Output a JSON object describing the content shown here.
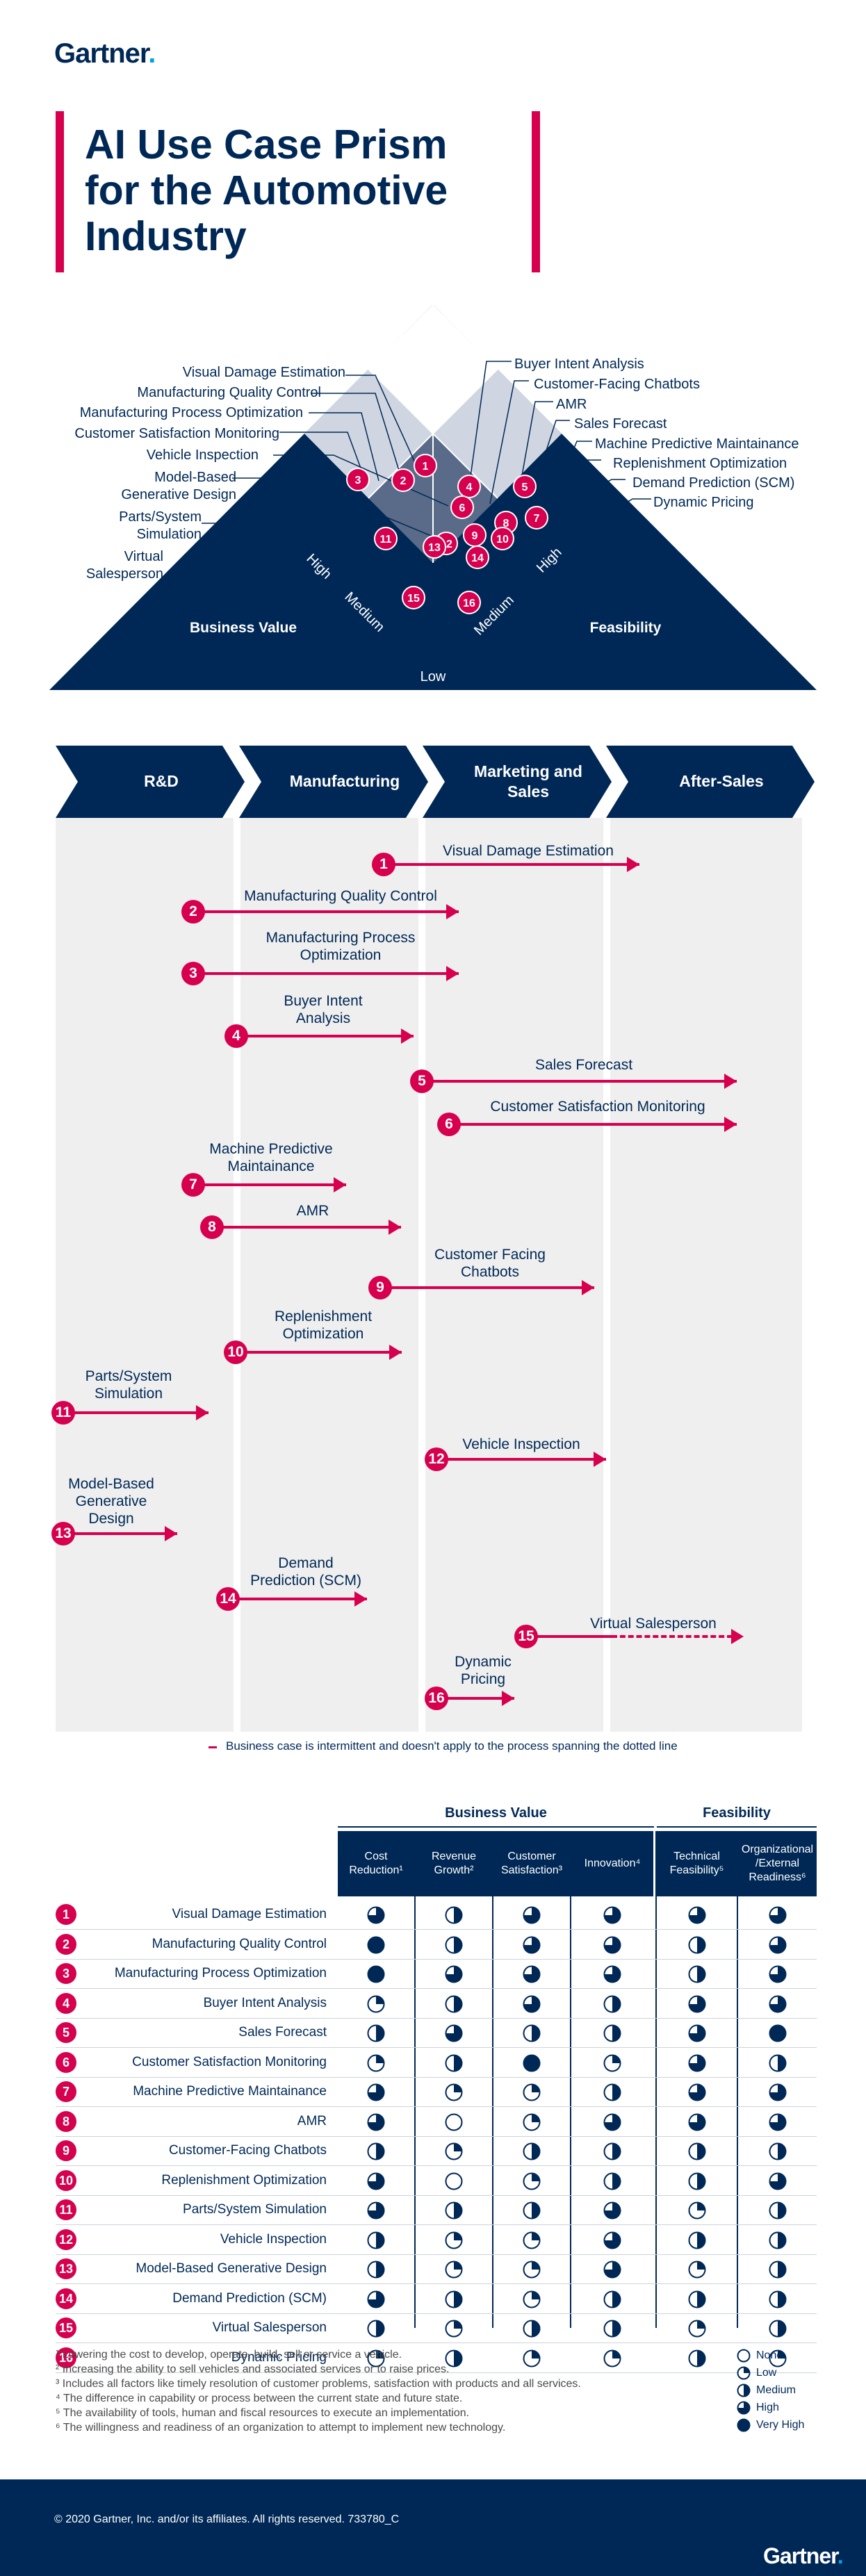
{
  "brand": {
    "logo": "Gartner",
    "accent": "#d6004f",
    "navy": "#002856"
  },
  "title": [
    "AI Use Case Prism",
    "for the Automotive",
    "Industry"
  ],
  "prism": {
    "left_axis": "Business Value",
    "right_axis": "Feasibility",
    "levels": {
      "high": "High",
      "medium": "Medium",
      "low": "Low"
    },
    "left_labels": [
      "Visual Damage Estimation",
      "Manufacturing Quality Control",
      "Manufacturing Process Optimization",
      "Customer Satisfaction Monitoring",
      "Vehicle Inspection",
      "Model-Based",
      "Generative Design",
      "Parts/System",
      "Simulation",
      "Virtual",
      "Salesperson"
    ],
    "right_labels": [
      "Buyer Intent Analysis",
      "Customer-Facing Chatbots",
      "AMR",
      "Sales Forecast",
      "Machine Predictive Maintainance",
      "Replenishment Optimization",
      "Demand Prediction (SCM)",
      "Dynamic Pricing"
    ],
    "numbers": [
      "1",
      "2",
      "3",
      "4",
      "5",
      "6",
      "7",
      "8",
      "9",
      "10",
      "11",
      "12",
      "13",
      "14",
      "15",
      "16"
    ]
  },
  "phases": [
    {
      "label": "R&D"
    },
    {
      "label": "Manufacturing"
    },
    {
      "label": "Marketing and Sales"
    },
    {
      "label": "After-Sales"
    }
  ],
  "use_cases": [
    {
      "num": "1",
      "name": "Visual Damage Estimation"
    },
    {
      "num": "2",
      "name": "Manufacturing Quality Control"
    },
    {
      "num": "3",
      "name": "Manufacturing Process Optimization"
    },
    {
      "num": "4",
      "name": "Buyer Intent Analysis"
    },
    {
      "num": "5",
      "name": "Sales Forecast"
    },
    {
      "num": "6",
      "name": "Customer Satisfaction Monitoring"
    },
    {
      "num": "7",
      "name": "Machine Predictive Maintainance"
    },
    {
      "num": "8",
      "name": "AMR"
    },
    {
      "num": "9",
      "name": "Customer Facing Chatbots"
    },
    {
      "num": "10",
      "name": "Replenishment Optimization"
    },
    {
      "num": "11",
      "name": "Parts/System Simulation"
    },
    {
      "num": "12",
      "name": "Vehicle Inspection"
    },
    {
      "num": "13",
      "name": "Model-Based Generative Design"
    },
    {
      "num": "14",
      "name": "Demand Prediction (SCM)"
    },
    {
      "num": "15",
      "name": "Virtual Salesperson"
    },
    {
      "num": "16",
      "name": "Dynamic Pricing"
    }
  ],
  "dotted_note": "Business case is intermittent and doesn't apply to the process spanning the dotted line",
  "table": {
    "group_business": "Business Value",
    "group_feasibility": "Feasibility",
    "columns": [
      "Cost Reduction¹",
      "Revenue Growth²",
      "Customer Satisfaction³",
      "Innovation⁴",
      "Technical Feasibility⁵",
      "Organizational /External Readiness⁶"
    ],
    "rows": [
      {
        "num": "1",
        "name": "Visual Damage Estimation",
        "scores": [
          3,
          2,
          3,
          3,
          3,
          3
        ]
      },
      {
        "num": "2",
        "name": "Manufacturing Quality Control",
        "scores": [
          4,
          2,
          3,
          3,
          2,
          3
        ]
      },
      {
        "num": "3",
        "name": "Manufacturing Process Optimization",
        "scores": [
          4,
          3,
          3,
          3,
          2,
          3
        ]
      },
      {
        "num": "4",
        "name": "Buyer Intent Analysis",
        "scores": [
          1,
          2,
          3,
          2,
          3,
          3
        ]
      },
      {
        "num": "5",
        "name": "Sales Forecast",
        "scores": [
          2,
          3,
          2,
          2,
          3,
          4
        ]
      },
      {
        "num": "6",
        "name": "Customer Satisfaction Monitoring",
        "scores": [
          1,
          2,
          4,
          1,
          3,
          2
        ]
      },
      {
        "num": "7",
        "name": "Machine Predictive Maintainance",
        "scores": [
          3,
          1,
          1,
          2,
          3,
          3
        ]
      },
      {
        "num": "8",
        "name": "AMR",
        "scores": [
          3,
          0,
          1,
          3,
          3,
          3
        ]
      },
      {
        "num": "9",
        "name": "Customer-Facing Chatbots",
        "scores": [
          2,
          1,
          2,
          2,
          2,
          2
        ]
      },
      {
        "num": "10",
        "name": "Replenishment Optimization",
        "scores": [
          3,
          0,
          1,
          2,
          2,
          3
        ]
      },
      {
        "num": "11",
        "name": "Parts/System Simulation",
        "scores": [
          3,
          2,
          2,
          3,
          1,
          2
        ]
      },
      {
        "num": "12",
        "name": "Vehicle Inspection",
        "scores": [
          2,
          1,
          1,
          3,
          2,
          2
        ]
      },
      {
        "num": "13",
        "name": "Model-Based Generative Design",
        "scores": [
          2,
          1,
          1,
          3,
          1,
          2
        ]
      },
      {
        "num": "14",
        "name": "Demand Prediction (SCM)",
        "scores": [
          3,
          2,
          1,
          2,
          2,
          2
        ]
      },
      {
        "num": "15",
        "name": "Virtual Salesperson",
        "scores": [
          2,
          1,
          2,
          2,
          1,
          2
        ]
      },
      {
        "num": "16",
        "name": "Dynamic Pricing",
        "scores": [
          1,
          2,
          1,
          1,
          2,
          1
        ]
      }
    ]
  },
  "legend": [
    "None",
    "Low",
    "Medium",
    "High",
    "Very High"
  ],
  "footnotes": [
    "¹ Lowering the cost to develop, operate, build, sell or service a vehicle.",
    "² Increasing the ability to sell vehicles and associated services or to raise prices.",
    "³ Includes all factors like timely resolution of customer problems, satisfaction with products and all services.",
    "⁴ The difference in capability or process between the current state and future state.",
    "⁵ The availability of tools, human and fiscal resources to execute an implementation.",
    "⁶ The willingness and readiness of an organization to attempt to implement new technology."
  ],
  "footer": {
    "copyright": "© 2020 Gartner, Inc. and/or its affiliates. All rights reserved. 733780_C",
    "logo": "Gartner"
  }
}
